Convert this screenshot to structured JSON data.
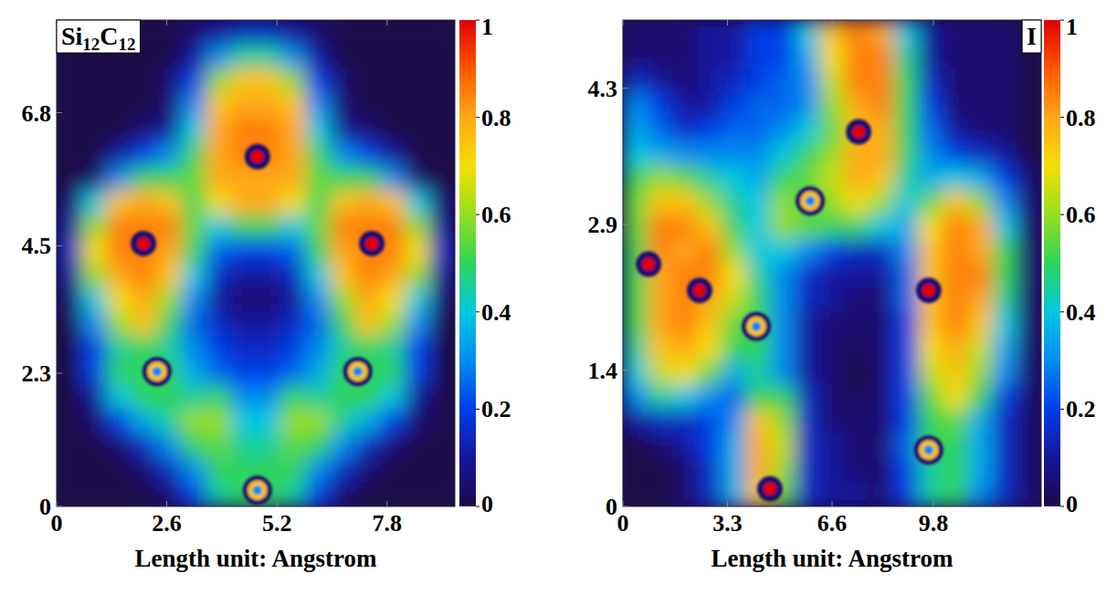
{
  "chart_data": [
    {
      "type": "heatmap",
      "title": "Si12C12",
      "xlabel": "Length unit: Angstrom",
      "xlim": [
        0,
        9.4
      ],
      "ylim": [
        0,
        8.4
      ],
      "xticks": [
        0,
        2.6,
        5.2,
        7.8
      ],
      "yticks": [
        0,
        2.3,
        4.5,
        6.8
      ],
      "cells": [
        [
          0,
          0,
          0,
          0,
          0,
          0.05,
          0.1,
          0.15,
          0.15,
          0.1,
          0.05,
          0,
          0,
          0,
          0,
          0
        ],
        [
          0,
          0,
          0,
          0,
          0,
          0.1,
          0.3,
          0.45,
          0.45,
          0.3,
          0.1,
          0,
          0,
          0,
          0,
          0
        ],
        [
          0,
          0,
          0,
          0,
          0.05,
          0.2,
          0.6,
          0.75,
          0.75,
          0.6,
          0.2,
          0.05,
          0,
          0,
          0,
          0
        ],
        [
          0,
          0,
          0,
          0,
          0.05,
          0.3,
          0.75,
          0.8,
          0.8,
          0.75,
          0.3,
          0.05,
          0,
          0,
          0,
          0
        ],
        [
          0,
          0,
          0,
          0.05,
          0.1,
          0.4,
          0.8,
          0.85,
          0.85,
          0.8,
          0.4,
          0.1,
          0.05,
          0,
          0,
          0
        ],
        [
          0,
          0,
          0.1,
          0.2,
          0.3,
          0.5,
          0.8,
          0.85,
          0.85,
          0.8,
          0.5,
          0.3,
          0.2,
          0.1,
          0,
          0
        ],
        [
          0,
          0.05,
          0.3,
          0.5,
          0.5,
          0.55,
          0.8,
          0.8,
          0.8,
          0.8,
          0.55,
          0.5,
          0.5,
          0.3,
          0.05,
          0
        ],
        [
          0.05,
          0.4,
          0.75,
          0.8,
          0.75,
          0.5,
          0.7,
          0.8,
          0.8,
          0.7,
          0.5,
          0.75,
          0.8,
          0.75,
          0.4,
          0.05
        ],
        [
          0.1,
          0.6,
          0.85,
          0.85,
          0.85,
          0.55,
          0.4,
          0.5,
          0.5,
          0.4,
          0.55,
          0.85,
          0.85,
          0.85,
          0.6,
          0.1
        ],
        [
          0.15,
          0.7,
          0.85,
          0.85,
          0.8,
          0.5,
          0.25,
          0.2,
          0.2,
          0.25,
          0.5,
          0.8,
          0.85,
          0.85,
          0.7,
          0.15
        ],
        [
          0.1,
          0.6,
          0.8,
          0.85,
          0.75,
          0.4,
          0.15,
          0.1,
          0.1,
          0.15,
          0.4,
          0.75,
          0.85,
          0.8,
          0.6,
          0.1
        ],
        [
          0.05,
          0.4,
          0.7,
          0.8,
          0.6,
          0.3,
          0.1,
          0.05,
          0.05,
          0.1,
          0.3,
          0.6,
          0.8,
          0.7,
          0.4,
          0.05
        ],
        [
          0,
          0.3,
          0.6,
          0.75,
          0.5,
          0.25,
          0.15,
          0.1,
          0.1,
          0.15,
          0.25,
          0.5,
          0.75,
          0.6,
          0.3,
          0
        ],
        [
          0,
          0.2,
          0.45,
          0.5,
          0.45,
          0.3,
          0.2,
          0.15,
          0.15,
          0.2,
          0.3,
          0.45,
          0.5,
          0.45,
          0.2,
          0
        ],
        [
          0,
          0.2,
          0.5,
          0.5,
          0.5,
          0.35,
          0.25,
          0.2,
          0.2,
          0.25,
          0.35,
          0.5,
          0.5,
          0.5,
          0.2,
          0
        ],
        [
          0,
          0.1,
          0.4,
          0.5,
          0.5,
          0.45,
          0.5,
          0.3,
          0.3,
          0.5,
          0.45,
          0.5,
          0.5,
          0.4,
          0.1,
          0
        ],
        [
          0,
          0.05,
          0.2,
          0.35,
          0.45,
          0.6,
          0.6,
          0.4,
          0.4,
          0.6,
          0.6,
          0.45,
          0.35,
          0.2,
          0.05,
          0
        ],
        [
          0,
          0,
          0.05,
          0.15,
          0.3,
          0.5,
          0.55,
          0.45,
          0.45,
          0.55,
          0.5,
          0.3,
          0.15,
          0.05,
          0,
          0
        ],
        [
          0,
          0,
          0,
          0.05,
          0.15,
          0.3,
          0.5,
          0.5,
          0.5,
          0.5,
          0.3,
          0.15,
          0.05,
          0,
          0,
          0
        ],
        [
          0,
          0,
          0,
          0,
          0.05,
          0.2,
          0.45,
          0.5,
          0.5,
          0.45,
          0.2,
          0.05,
          0,
          0,
          0,
          0
        ]
      ],
      "nuclei": [
        {
          "x": 4.74,
          "y": 6.04,
          "values": [
            1,
            0.05
          ]
        },
        {
          "x": 2.05,
          "y": 4.54,
          "values": [
            1,
            0.05
          ]
        },
        {
          "x": 7.44,
          "y": 4.54,
          "values": [
            1,
            0.05
          ]
        },
        {
          "x": 2.37,
          "y": 2.33,
          "values": [
            0.3,
            0.75,
            0.05
          ]
        },
        {
          "x": 7.11,
          "y": 2.33,
          "values": [
            0.3,
            0.75,
            0.05
          ]
        },
        {
          "x": 4.74,
          "y": 0.28,
          "values": [
            0.3,
            0.75,
            0.05
          ]
        }
      ],
      "colorbar": {
        "range": [
          0,
          1
        ],
        "ticks": [
          0,
          0.2,
          0.4,
          0.6,
          0.8,
          1
        ]
      }
    },
    {
      "type": "heatmap",
      "title": "I",
      "xlabel": "Length unit: Angstrom",
      "xlim": [
        0,
        13.2
      ],
      "ylim": [
        0,
        5.0
      ],
      "xticks": [
        0,
        3.3,
        6.6,
        9.8
      ],
      "yticks": [
        0,
        1.4,
        2.9,
        4.3
      ],
      "cells": [
        [
          0.05,
          0.05,
          0.05,
          0.1,
          0.1,
          0.2,
          0.2,
          0.4,
          0.75,
          0.85,
          0.8,
          0.4,
          0.1,
          0.05,
          0.05,
          0.05,
          0
        ],
        [
          0.05,
          0.05,
          0.05,
          0.1,
          0.1,
          0.2,
          0.2,
          0.35,
          0.7,
          0.85,
          0.85,
          0.45,
          0.1,
          0.05,
          0.05,
          0.05,
          0
        ],
        [
          0.15,
          0.1,
          0.05,
          0.1,
          0.15,
          0.2,
          0.25,
          0.3,
          0.65,
          0.85,
          0.85,
          0.5,
          0.15,
          0.05,
          0.05,
          0.05,
          0
        ],
        [
          0.3,
          0.2,
          0.1,
          0.1,
          0.2,
          0.25,
          0.25,
          0.3,
          0.6,
          0.8,
          0.85,
          0.5,
          0.2,
          0.05,
          0.05,
          0.05,
          0
        ],
        [
          0.35,
          0.25,
          0.15,
          0.2,
          0.25,
          0.25,
          0.3,
          0.4,
          0.55,
          0.75,
          0.8,
          0.5,
          0.25,
          0.1,
          0.05,
          0.05,
          0
        ],
        [
          0.4,
          0.35,
          0.3,
          0.3,
          0.3,
          0.3,
          0.4,
          0.5,
          0.6,
          0.8,
          0.8,
          0.5,
          0.3,
          0.2,
          0.15,
          0.1,
          0
        ],
        [
          0.5,
          0.6,
          0.55,
          0.45,
          0.4,
          0.35,
          0.5,
          0.55,
          0.65,
          0.8,
          0.75,
          0.45,
          0.35,
          0.4,
          0.35,
          0.2,
          0.05
        ],
        [
          0.55,
          0.75,
          0.75,
          0.6,
          0.45,
          0.4,
          0.6,
          0.5,
          0.6,
          0.7,
          0.6,
          0.4,
          0.55,
          0.75,
          0.6,
          0.3,
          0.05
        ],
        [
          0.55,
          0.85,
          0.85,
          0.75,
          0.5,
          0.4,
          0.6,
          0.55,
          0.5,
          0.5,
          0.4,
          0.35,
          0.7,
          0.85,
          0.8,
          0.4,
          0.05
        ],
        [
          0.5,
          0.85,
          0.8,
          0.85,
          0.6,
          0.4,
          0.4,
          0.3,
          0.2,
          0.15,
          0.15,
          0.3,
          0.75,
          0.85,
          0.8,
          0.5,
          0.05
        ],
        [
          0.5,
          0.8,
          0.85,
          0.85,
          0.7,
          0.45,
          0.3,
          0.15,
          0.1,
          0.1,
          0.1,
          0.25,
          0.75,
          0.85,
          0.85,
          0.5,
          0.05
        ],
        [
          0.5,
          0.8,
          0.85,
          0.8,
          0.65,
          0.5,
          0.3,
          0.15,
          0.1,
          0.05,
          0.05,
          0.25,
          0.75,
          0.85,
          0.8,
          0.45,
          0.05
        ],
        [
          0.5,
          0.8,
          0.85,
          0.75,
          0.55,
          0.5,
          0.3,
          0.1,
          0.05,
          0.05,
          0.05,
          0.2,
          0.75,
          0.85,
          0.75,
          0.4,
          0.05
        ],
        [
          0.45,
          0.75,
          0.8,
          0.7,
          0.5,
          0.5,
          0.3,
          0.1,
          0.05,
          0.03,
          0.05,
          0.2,
          0.7,
          0.8,
          0.65,
          0.35,
          0.05
        ],
        [
          0.4,
          0.65,
          0.7,
          0.55,
          0.35,
          0.45,
          0.3,
          0.1,
          0.05,
          0,
          0.05,
          0.2,
          0.65,
          0.75,
          0.6,
          0.3,
          0.05
        ],
        [
          0.3,
          0.45,
          0.4,
          0.3,
          0.25,
          0.5,
          0.5,
          0.15,
          0.05,
          0.03,
          0.05,
          0.2,
          0.55,
          0.7,
          0.5,
          0.2,
          0.05
        ],
        [
          0.1,
          0.15,
          0.15,
          0.2,
          0.3,
          0.75,
          0.6,
          0.15,
          0.05,
          0.05,
          0.05,
          0.2,
          0.5,
          0.55,
          0.35,
          0.15,
          0.05
        ],
        [
          0,
          0.05,
          0.1,
          0.2,
          0.35,
          0.8,
          0.65,
          0.15,
          0.1,
          0.05,
          0.05,
          0.25,
          0.5,
          0.5,
          0.35,
          0.15,
          0.05
        ],
        [
          0,
          0,
          0.05,
          0.15,
          0.35,
          0.8,
          0.6,
          0.15,
          0.1,
          0.05,
          0.05,
          0.2,
          0.45,
          0.5,
          0.35,
          0.15,
          0.05
        ],
        [
          0,
          0,
          0.05,
          0.15,
          0.35,
          0.75,
          0.55,
          0.15,
          0.1,
          0.1,
          0.05,
          0.2,
          0.45,
          0.5,
          0.3,
          0.15,
          0.05
        ]
      ],
      "nuclei": [
        {
          "x": 0.81,
          "y": 2.49,
          "values": [
            1,
            0.05
          ]
        },
        {
          "x": 2.42,
          "y": 2.22,
          "values": [
            1,
            0.05
          ]
        },
        {
          "x": 4.21,
          "y": 1.85,
          "values": [
            0.3,
            0.75,
            0.05
          ]
        },
        {
          "x": 4.64,
          "y": 0.18,
          "values": [
            1,
            0.05
          ]
        },
        {
          "x": 5.91,
          "y": 3.14,
          "values": [
            0.3,
            0.75,
            0.05
          ]
        },
        {
          "x": 7.44,
          "y": 3.85,
          "values": [
            1,
            0.05
          ]
        },
        {
          "x": 9.65,
          "y": 2.22,
          "values": [
            1,
            0.05
          ]
        },
        {
          "x": 9.65,
          "y": 0.58,
          "values": [
            0.3,
            0.75,
            0.05
          ]
        }
      ],
      "colorbar": {
        "range": [
          0,
          1
        ],
        "ticks": [
          0,
          0.2,
          0.4,
          0.6,
          0.8,
          1
        ]
      }
    }
  ]
}
